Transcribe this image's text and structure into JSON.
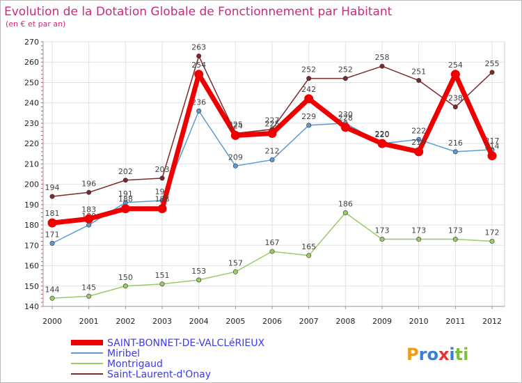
{
  "chart_data": {
    "type": "line",
    "title": "Evolution de la Dotation Globale de Fonctionnement par Habitant",
    "subtitle": "(en € et par an)",
    "xlabel": "",
    "ylabel": "",
    "x": [
      "2000",
      "2001",
      "2002",
      "2003",
      "2004",
      "2005",
      "2006",
      "2007",
      "2008",
      "2009",
      "2010",
      "2011",
      "2012"
    ],
    "ylim": [
      140,
      270
    ],
    "yticks": [
      140,
      150,
      160,
      170,
      180,
      190,
      200,
      210,
      220,
      230,
      240,
      250,
      260,
      270
    ],
    "grid": true,
    "series": [
      {
        "name": "SAINT-BONNET-DE-VALCLéRIEUX",
        "color": "#ee0000",
        "values": [
          181,
          183,
          188,
          188,
          254,
          224,
          225,
          242,
          228,
          220,
          216,
          254,
          214
        ]
      },
      {
        "name": "Miribel",
        "color": "#5b9bd5",
        "values": [
          171,
          180,
          191,
          192,
          236,
          209,
          212,
          229,
          230,
          220,
          222,
          216,
          217
        ]
      },
      {
        "name": "Montrigaud",
        "color": "#99cc66",
        "values": [
          144,
          145,
          150,
          151,
          153,
          157,
          167,
          165,
          186,
          173,
          173,
          173,
          172
        ]
      },
      {
        "name": "Saint-Laurent-d'Onay",
        "color": "#7a2a2a",
        "values": [
          194,
          196,
          202,
          203,
          263,
          225,
          227,
          252,
          252,
          258,
          251,
          238,
          255
        ]
      }
    ]
  },
  "logo": {
    "text": "Proxiti"
  }
}
